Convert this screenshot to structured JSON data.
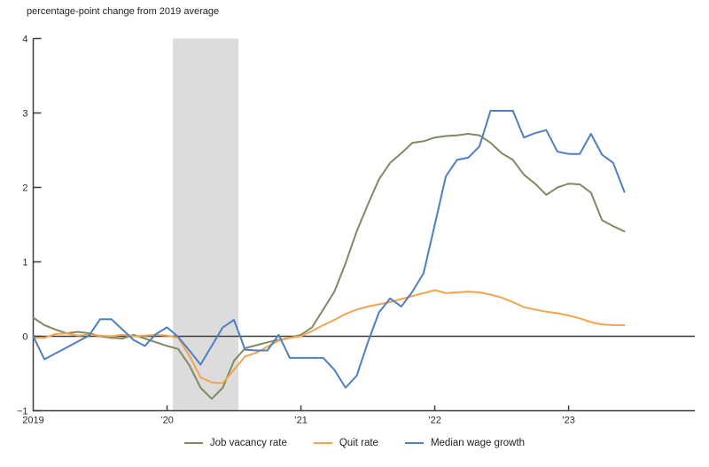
{
  "chart_title": "percentage-point change from 2019 average",
  "chart_data": {
    "type": "line",
    "title": "percentage-point change from 2019 average",
    "xlabel": "",
    "ylabel": "percentage-point change from 2019 average",
    "ylim": [
      -1,
      4
    ],
    "grid": false,
    "zero_line": true,
    "legend_position": "bottom",
    "x_unit": "month",
    "categories": [
      "2019-01",
      "2019-02",
      "2019-03",
      "2019-04",
      "2019-05",
      "2019-06",
      "2019-07",
      "2019-08",
      "2019-09",
      "2019-10",
      "2019-11",
      "2019-12",
      "2020-01",
      "2020-02",
      "2020-03",
      "2020-04",
      "2020-05",
      "2020-06",
      "2020-07",
      "2020-08",
      "2020-09",
      "2020-10",
      "2020-11",
      "2020-12",
      "2021-01",
      "2021-02",
      "2021-03",
      "2021-04",
      "2021-05",
      "2021-06",
      "2021-07",
      "2021-08",
      "2021-09",
      "2021-10",
      "2021-11",
      "2021-12",
      "2022-01",
      "2022-02",
      "2022-03",
      "2022-04",
      "2022-05",
      "2022-06",
      "2022-07",
      "2022-08",
      "2022-09",
      "2022-10",
      "2022-11",
      "2022-12",
      "2023-01",
      "2023-02",
      "2023-03",
      "2023-04",
      "2023-05",
      "2023-06"
    ],
    "series": [
      {
        "name": "Job vacancy rate",
        "color": "#7d8c63",
        "values": [
          0.25,
          0.15,
          0.09,
          0.04,
          0.06,
          0.04,
          0.0,
          -0.02,
          -0.03,
          0.02,
          -0.03,
          -0.08,
          -0.13,
          -0.17,
          -0.39,
          -0.69,
          -0.84,
          -0.69,
          -0.33,
          -0.16,
          -0.12,
          -0.08,
          -0.05,
          -0.02,
          0.02,
          0.12,
          0.36,
          0.6,
          0.98,
          1.41,
          1.77,
          2.11,
          2.33,
          2.46,
          2.6,
          2.62,
          2.67,
          2.69,
          2.7,
          2.72,
          2.7,
          2.6,
          2.46,
          2.37,
          2.17,
          2.05,
          1.9,
          2.0,
          2.05,
          2.04,
          1.93,
          1.56,
          1.48,
          1.41
        ]
      },
      {
        "name": "Quit rate",
        "color": "#f4a44e",
        "values": [
          -0.02,
          -0.02,
          0.03,
          0.04,
          0.01,
          0.02,
          0.01,
          0.0,
          0.02,
          0.0,
          0.01,
          0.02,
          0.01,
          -0.02,
          -0.26,
          -0.55,
          -0.62,
          -0.63,
          -0.45,
          -0.27,
          -0.22,
          -0.14,
          -0.06,
          -0.02,
          0.0,
          0.07,
          0.15,
          0.22,
          0.3,
          0.36,
          0.4,
          0.43,
          0.46,
          0.5,
          0.54,
          0.58,
          0.62,
          0.58,
          0.59,
          0.6,
          0.59,
          0.56,
          0.52,
          0.46,
          0.39,
          0.36,
          0.33,
          0.31,
          0.28,
          0.24,
          0.19,
          0.16,
          0.15,
          0.15
        ]
      },
      {
        "name": "Median wage growth",
        "color": "#4d7fc4",
        "values": [
          0.0,
          -0.31,
          -0.23,
          -0.15,
          -0.07,
          0.01,
          0.23,
          0.23,
          0.09,
          -0.05,
          -0.13,
          0.03,
          0.12,
          -0.01,
          -0.19,
          -0.38,
          -0.13,
          0.12,
          0.22,
          -0.18,
          -0.19,
          -0.19,
          0.02,
          -0.29,
          -0.29,
          -0.29,
          -0.29,
          -0.45,
          -0.69,
          -0.53,
          -0.08,
          0.32,
          0.51,
          0.4,
          0.6,
          0.85,
          1.5,
          2.15,
          2.37,
          2.4,
          2.55,
          3.03,
          3.03,
          3.03,
          2.67,
          2.73,
          2.77,
          2.48,
          2.45,
          2.45,
          2.72,
          2.44,
          2.33,
          1.94
        ]
      }
    ],
    "yticks": [
      {
        "v": 4,
        "label": "4"
      },
      {
        "v": 3,
        "label": "3"
      },
      {
        "v": 2,
        "label": "2"
      },
      {
        "v": 1,
        "label": "1"
      },
      {
        "v": 0,
        "label": "0"
      },
      {
        "v": -1,
        "label": "−1"
      }
    ],
    "xticks": [
      {
        "m": 0,
        "label": "2019"
      },
      {
        "m": 12,
        "label": "’20"
      },
      {
        "m": 24,
        "label": "’21"
      },
      {
        "m": 36,
        "label": "’22"
      },
      {
        "m": 48,
        "label": "’23"
      }
    ],
    "recession_band": {
      "start_month_index": 12.52,
      "end_month_index": 18.4,
      "color": "#dcdcdc"
    }
  },
  "colors": {
    "axis": "#3c3c3c",
    "tick_text": "#2a2a2a",
    "title_text": "#1f1f1f"
  }
}
